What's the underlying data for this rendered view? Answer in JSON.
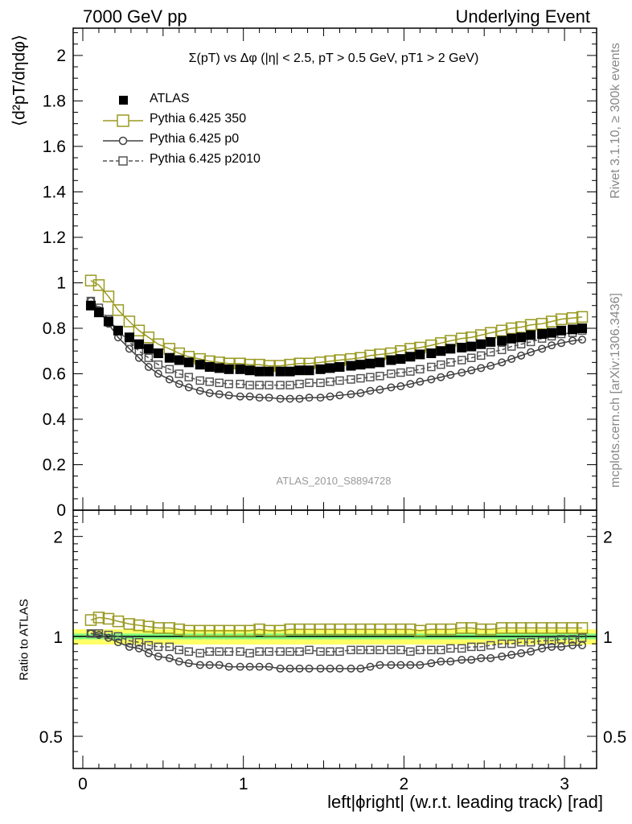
{
  "header": {
    "left": "7000 GeV pp",
    "right": "Underlying Event"
  },
  "side_labels": {
    "rivet": "Rivet 3.1.10, ≥ 300k events",
    "mcplots": "mcplots.cern.ch [arXiv:1306.3436]"
  },
  "chart_data": [
    {
      "type": "scatter",
      "title": "Σ(pT) vs Δφ (|η| < 2.5, pT > 0.5 GeV, pT1 > 2 GeV)",
      "ylabel": "⟨d²pT/dηdφ⟩",
      "xlabel": "",
      "xlim": [
        -0.06,
        3.2
      ],
      "ylim": [
        0,
        2.12
      ],
      "yticks": [
        "0",
        "0.2",
        "0.4",
        "0.6",
        "0.8",
        "1",
        "1.2",
        "1.4",
        "1.6",
        "1.8",
        "2"
      ],
      "annotation": "ATLAS_2010_S8894728",
      "legend_position": "top-left",
      "x": [
        0.05,
        0.1,
        0.16,
        0.22,
        0.29,
        0.35,
        0.41,
        0.47,
        0.54,
        0.6,
        0.66,
        0.73,
        0.79,
        0.85,
        0.91,
        0.98,
        1.04,
        1.1,
        1.16,
        1.23,
        1.29,
        1.35,
        1.41,
        1.48,
        1.54,
        1.6,
        1.67,
        1.73,
        1.79,
        1.85,
        1.92,
        1.98,
        2.04,
        2.1,
        2.17,
        2.23,
        2.29,
        2.36,
        2.42,
        2.48,
        2.54,
        2.61,
        2.67,
        2.73,
        2.79,
        2.86,
        2.92,
        2.98,
        3.05,
        3.11
      ],
      "series": [
        {
          "name": "ATLAS",
          "color": "#000000",
          "marker": "filled-square",
          "values": [
            0.9,
            0.87,
            0.83,
            0.79,
            0.76,
            0.73,
            0.71,
            0.69,
            0.67,
            0.66,
            0.65,
            0.64,
            0.63,
            0.625,
            0.62,
            0.62,
            0.615,
            0.61,
            0.61,
            0.61,
            0.61,
            0.615,
            0.615,
            0.62,
            0.625,
            0.63,
            0.635,
            0.64,
            0.645,
            0.65,
            0.66,
            0.665,
            0.675,
            0.685,
            0.69,
            0.7,
            0.71,
            0.715,
            0.72,
            0.73,
            0.74,
            0.745,
            0.755,
            0.76,
            0.77,
            0.775,
            0.78,
            0.79,
            0.795,
            0.8
          ]
        },
        {
          "name": "Pythia 6.425 350",
          "color": "#9a9a22",
          "marker": "open-square",
          "values": [
            1.01,
            0.99,
            0.94,
            0.88,
            0.83,
            0.79,
            0.76,
            0.73,
            0.71,
            0.69,
            0.675,
            0.665,
            0.655,
            0.65,
            0.645,
            0.645,
            0.64,
            0.64,
            0.635,
            0.635,
            0.64,
            0.645,
            0.645,
            0.65,
            0.655,
            0.66,
            0.665,
            0.67,
            0.68,
            0.685,
            0.69,
            0.7,
            0.71,
            0.715,
            0.725,
            0.735,
            0.745,
            0.755,
            0.76,
            0.77,
            0.78,
            0.79,
            0.8,
            0.805,
            0.815,
            0.82,
            0.83,
            0.84,
            0.845,
            0.85
          ]
        },
        {
          "name": "Pythia 6.425 p0",
          "color": "#404040",
          "marker": "open-circle",
          "values": [
            0.92,
            0.88,
            0.82,
            0.76,
            0.71,
            0.67,
            0.63,
            0.6,
            0.575,
            0.555,
            0.54,
            0.525,
            0.515,
            0.51,
            0.505,
            0.5,
            0.5,
            0.495,
            0.495,
            0.49,
            0.49,
            0.49,
            0.495,
            0.495,
            0.5,
            0.505,
            0.51,
            0.515,
            0.525,
            0.53,
            0.54,
            0.545,
            0.555,
            0.565,
            0.575,
            0.585,
            0.595,
            0.605,
            0.615,
            0.625,
            0.635,
            0.65,
            0.665,
            0.68,
            0.695,
            0.71,
            0.725,
            0.735,
            0.745,
            0.75
          ]
        },
        {
          "name": "Pythia 6.425 p2010",
          "color": "#555555",
          "marker": "open-square-small",
          "values": [
            0.92,
            0.89,
            0.84,
            0.79,
            0.74,
            0.7,
            0.67,
            0.64,
            0.62,
            0.6,
            0.585,
            0.57,
            0.565,
            0.56,
            0.555,
            0.555,
            0.55,
            0.55,
            0.55,
            0.55,
            0.55,
            0.555,
            0.56,
            0.56,
            0.565,
            0.57,
            0.575,
            0.58,
            0.585,
            0.59,
            0.6,
            0.605,
            0.61,
            0.62,
            0.63,
            0.64,
            0.65,
            0.66,
            0.67,
            0.68,
            0.695,
            0.705,
            0.72,
            0.73,
            0.74,
            0.755,
            0.765,
            0.775,
            0.78,
            0.79
          ]
        }
      ]
    },
    {
      "type": "scatter",
      "title": "",
      "ylabel": "Ratio to ATLAS",
      "xlabel": "left|ϕright| (w.r.t. leading track) [rad]",
      "xlim": [
        -0.06,
        3.2
      ],
      "ylim": [
        0.4,
        2.4
      ],
      "scale": "log",
      "yticks": [
        "0.5",
        "1",
        "2"
      ],
      "xticks": [
        "0",
        "1",
        "2",
        "3"
      ],
      "bands": {
        "inner": [
          0.98,
          1.02
        ],
        "outer": [
          0.945,
          1.05
        ],
        "inner_color": "#7fff7f",
        "outer_color": "#ffff66"
      },
      "series": [
        {
          "name": "Pythia 6.425 350",
          "color": "#9a9a22",
          "values": [
            1.12,
            1.14,
            1.13,
            1.11,
            1.09,
            1.08,
            1.07,
            1.06,
            1.06,
            1.05,
            1.04,
            1.04,
            1.04,
            1.04,
            1.04,
            1.04,
            1.04,
            1.05,
            1.04,
            1.04,
            1.05,
            1.05,
            1.05,
            1.05,
            1.05,
            1.05,
            1.05,
            1.05,
            1.05,
            1.05,
            1.05,
            1.05,
            1.05,
            1.04,
            1.05,
            1.05,
            1.05,
            1.06,
            1.06,
            1.05,
            1.05,
            1.06,
            1.06,
            1.06,
            1.06,
            1.06,
            1.06,
            1.06,
            1.06,
            1.06
          ]
        },
        {
          "name": "Pythia 6.425 p0",
          "color": "#404040",
          "values": [
            1.02,
            1.01,
            0.99,
            0.96,
            0.93,
            0.92,
            0.89,
            0.87,
            0.86,
            0.84,
            0.83,
            0.82,
            0.82,
            0.82,
            0.81,
            0.81,
            0.81,
            0.81,
            0.81,
            0.8,
            0.8,
            0.8,
            0.8,
            0.8,
            0.8,
            0.8,
            0.8,
            0.8,
            0.81,
            0.82,
            0.82,
            0.82,
            0.82,
            0.82,
            0.83,
            0.84,
            0.84,
            0.85,
            0.85,
            0.86,
            0.86,
            0.87,
            0.88,
            0.89,
            0.9,
            0.92,
            0.93,
            0.93,
            0.94,
            0.94
          ]
        },
        {
          "name": "Pythia 6.425 p2010",
          "color": "#555555",
          "values": [
            1.02,
            1.02,
            1.01,
            1.0,
            0.97,
            0.96,
            0.94,
            0.93,
            0.93,
            0.91,
            0.9,
            0.89,
            0.9,
            0.9,
            0.9,
            0.9,
            0.89,
            0.9,
            0.9,
            0.9,
            0.9,
            0.9,
            0.91,
            0.9,
            0.9,
            0.9,
            0.91,
            0.91,
            0.91,
            0.91,
            0.91,
            0.91,
            0.9,
            0.91,
            0.91,
            0.91,
            0.92,
            0.92,
            0.93,
            0.93,
            0.94,
            0.95,
            0.95,
            0.96,
            0.96,
            0.97,
            0.97,
            0.98,
            0.98,
            0.99
          ]
        }
      ]
    }
  ]
}
